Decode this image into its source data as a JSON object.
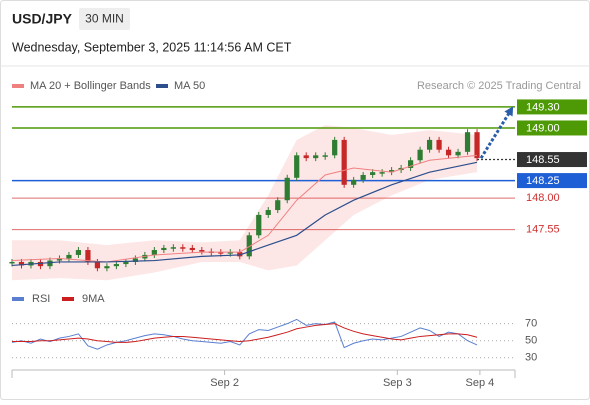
{
  "header": {
    "symbol": "USD/JPY",
    "timeframe": "30 MIN",
    "datetime": "Wednesday, September 3, 2025 11:14:56 AM CET",
    "credit": "Research © 2025 Trading Central"
  },
  "chart_data": [
    {
      "type": "candlestick",
      "xlim": [
        0,
        53
      ],
      "ylim": [
        146.79,
        149.47
      ],
      "closes": [
        147.09,
        147.04,
        147.09,
        147.03,
        147.11,
        147.14,
        147.19,
        147.26,
        147.09,
        147.0,
        147.03,
        147.06,
        147.09,
        147.14,
        147.19,
        147.26,
        147.29,
        147.3,
        147.29,
        147.26,
        147.24,
        147.23,
        147.21,
        147.23,
        147.17,
        147.47,
        147.76,
        147.83,
        147.97,
        148.29,
        148.61,
        148.57,
        148.61,
        148.61,
        148.83,
        148.19,
        148.26,
        148.33,
        148.37,
        148.37,
        148.4,
        148.43,
        148.54,
        148.69,
        148.83,
        148.69,
        148.61,
        148.66,
        148.94,
        148.57
      ],
      "up_color": "#2e7d32",
      "down_color": "#c62828",
      "series": [
        {
          "name": "MA 20 + Bollinger Bands",
          "color": "#f08080",
          "x": [
            0,
            5,
            10,
            15,
            20,
            24,
            27,
            30,
            33,
            36,
            40,
            44,
            49
          ],
          "values": [
            147.11,
            147.14,
            147.09,
            147.19,
            147.23,
            147.23,
            147.47,
            147.97,
            148.33,
            148.43,
            148.37,
            148.54,
            148.61
          ],
          "upper": [
            147.4,
            147.4,
            147.33,
            147.4,
            147.37,
            147.4,
            148.04,
            148.83,
            149.04,
            149.0,
            148.9,
            148.97,
            148.9
          ],
          "lower": [
            146.83,
            146.86,
            146.83,
            146.94,
            147.09,
            147.09,
            146.97,
            147.04,
            147.4,
            147.76,
            148.04,
            148.26,
            148.37
          ]
        },
        {
          "name": "MA 50",
          "color": "#2c4f8c",
          "x": [
            0,
            5,
            10,
            15,
            20,
            24,
            27,
            30,
            33,
            36,
            40,
            44,
            49
          ],
          "values": [
            147.04,
            147.09,
            147.09,
            147.11,
            147.17,
            147.19,
            147.33,
            147.47,
            147.76,
            147.97,
            148.19,
            148.37,
            148.51
          ]
        }
      ],
      "levels": [
        {
          "value": 149.3,
          "label": "149.30",
          "color": "#4e9a06",
          "style": "box",
          "line": "solid"
        },
        {
          "value": 149.0,
          "label": "149.00",
          "color": "#4e9a06",
          "style": "box",
          "line": "solid"
        },
        {
          "value": 148.55,
          "label": "148.55",
          "color": "#333333",
          "style": "box",
          "line": "dotted"
        },
        {
          "value": 148.25,
          "label": "148.25",
          "color": "#1f5fd6",
          "style": "box",
          "line": "solid"
        },
        {
          "value": 148.0,
          "label": "148.00",
          "color": "#d03030",
          "style": "text",
          "line": "solid"
        },
        {
          "value": 147.55,
          "label": "147.55",
          "color": "#d03030",
          "style": "text",
          "line": "solid"
        }
      ],
      "arrow_color": "#2a5ea8"
    },
    {
      "type": "line",
      "xlim": [
        0,
        53
      ],
      "ylim": [
        18,
        86
      ],
      "yticks": [
        70,
        50,
        30
      ],
      "xticks": [
        {
          "value": 22.4,
          "label": "Sep 2"
        },
        {
          "value": 40.6,
          "label": "Sep 3"
        },
        {
          "value": 49.3,
          "label": "Sep 4"
        }
      ],
      "series": [
        {
          "name": "RSI",
          "color": "#5a7fd0",
          "values": [
            48,
            50,
            47,
            52,
            49,
            53,
            55,
            58,
            44,
            40,
            45,
            48,
            50,
            53,
            56,
            58,
            57,
            55,
            52,
            50,
            49,
            48,
            47,
            49,
            45,
            58,
            63,
            62,
            66,
            70,
            75,
            68,
            70,
            69,
            72,
            42,
            47,
            50,
            52,
            51,
            53,
            55,
            60,
            65,
            62,
            55,
            60,
            58,
            50,
            45
          ]
        },
        {
          "name": "9MA",
          "color": "#cc1e1e",
          "values": [
            49,
            49,
            49,
            50,
            50,
            51,
            52,
            53,
            52,
            50,
            49,
            48,
            48,
            49,
            51,
            53,
            54,
            55,
            55,
            54,
            53,
            52,
            51,
            50,
            49,
            50,
            52,
            54,
            57,
            60,
            64,
            66,
            68,
            69,
            70,
            65,
            61,
            58,
            56,
            54,
            52,
            51,
            53,
            55,
            56,
            57,
            58,
            58,
            57,
            54
          ]
        }
      ]
    }
  ]
}
